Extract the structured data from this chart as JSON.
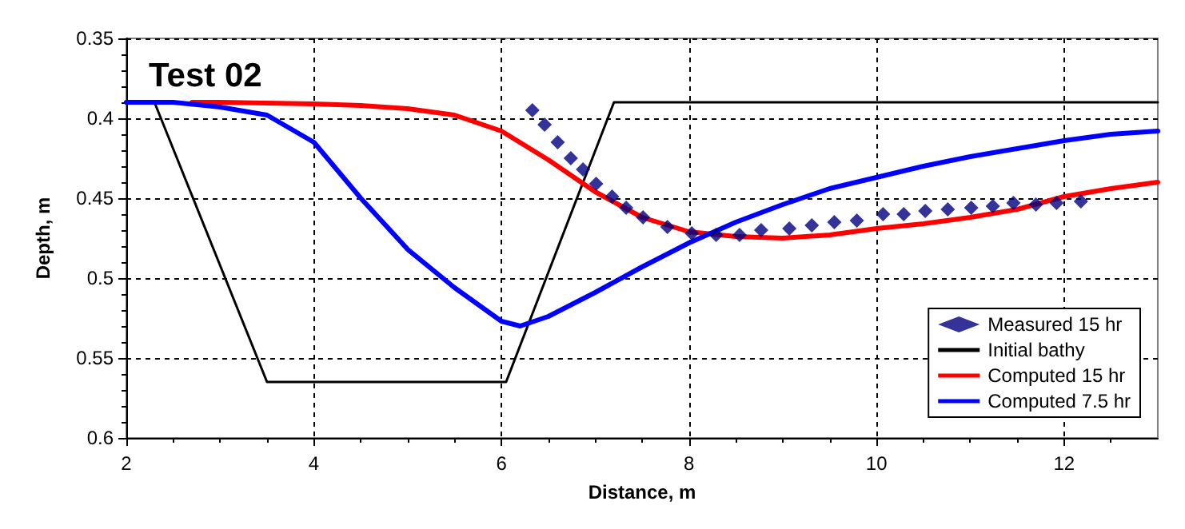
{
  "chart_data": {
    "type": "line",
    "title": "Test 02",
    "xlabel": "Distance, m",
    "ylabel": "Depth, m",
    "xlim": [
      2,
      13
    ],
    "xticks": [
      2,
      4,
      6,
      8,
      10,
      12
    ],
    "ylim": [
      0.6,
      0.35
    ],
    "yticks": [
      0.35,
      0.4,
      0.45,
      0.5,
      0.55,
      0.6
    ],
    "grid": true,
    "legend": "bottom right",
    "line_style": "solid",
    "series": [
      {
        "name": "Measured 15 hr",
        "type": "scatter",
        "marker": "diamond",
        "color": "#000080",
        "x": [
          6.33,
          6.46,
          6.6,
          6.74,
          6.87,
          7.01,
          7.18,
          7.33,
          7.51,
          7.77,
          8.03,
          8.29,
          8.54,
          8.77,
          9.07,
          9.31,
          9.55,
          9.79,
          10.07,
          10.29,
          10.52,
          10.76,
          11.01,
          11.24,
          11.46,
          11.7,
          11.92,
          12.18
        ],
        "values": [
          0.395,
          0.404,
          0.415,
          0.425,
          0.432,
          0.441,
          0.449,
          0.456,
          0.462,
          0.468,
          0.472,
          0.473,
          0.473,
          0.47,
          0.469,
          0.467,
          0.465,
          0.464,
          0.46,
          0.46,
          0.458,
          0.457,
          0.456,
          0.455,
          0.453,
          0.454,
          0.453,
          0.452
        ]
      },
      {
        "name": "Initial bathy",
        "marker": "none",
        "color": "#000000",
        "x": [
          2,
          2.3,
          3.5,
          6.05,
          7.2,
          13
        ],
        "values": [
          0.39,
          0.39,
          0.565,
          0.565,
          0.39,
          0.39
        ]
      },
      {
        "name": "Computed 15 hr",
        "marker": "none",
        "color": "#ff0000",
        "x": [
          2.7,
          3,
          4,
          4.5,
          5,
          5.5,
          6,
          6.5,
          7,
          7.5,
          8,
          8.5,
          9,
          9.5,
          10,
          10.5,
          11,
          11.5,
          12,
          12.5,
          13
        ],
        "values": [
          0.39,
          0.39,
          0.391,
          0.392,
          0.394,
          0.398,
          0.408,
          0.426,
          0.446,
          0.462,
          0.471,
          0.474,
          0.475,
          0.473,
          0.469,
          0.466,
          0.462,
          0.457,
          0.449,
          0.444,
          0.44
        ]
      },
      {
        "name": "Computed 7.5 hr",
        "marker": "none",
        "color": "#0000ff",
        "x": [
          2,
          2.5,
          3,
          3.5,
          4,
          4.5,
          5,
          5.5,
          6,
          6.2,
          6.5,
          7,
          7.5,
          8,
          8.5,
          9,
          9.5,
          10,
          10.5,
          11,
          11.5,
          12,
          12.5,
          13
        ],
        "values": [
          0.39,
          0.39,
          0.393,
          0.398,
          0.415,
          0.45,
          0.482,
          0.506,
          0.527,
          0.53,
          0.524,
          0.509,
          0.493,
          0.478,
          0.465,
          0.454,
          0.444,
          0.437,
          0.43,
          0.424,
          0.419,
          0.414,
          0.41,
          0.408
        ]
      }
    ]
  }
}
